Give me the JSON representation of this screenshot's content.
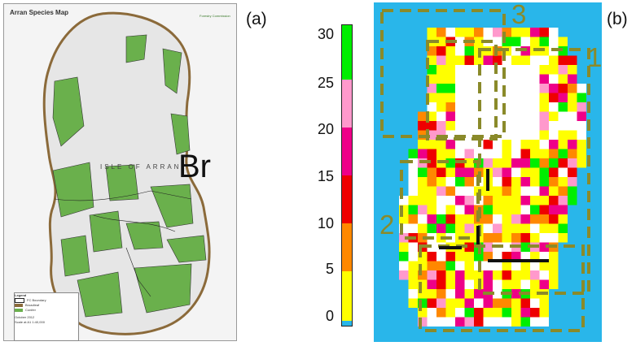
{
  "labels": {
    "panel_a": "(a)",
    "panel_b": "(b)"
  },
  "map": {
    "title": "Arran Species Map",
    "island_name": "ISLE OF ARRAN",
    "overlay_label": "Br",
    "logo": "Forestry Commission",
    "legend": {
      "heading": "Legend",
      "items": [
        "FC Boundary",
        "Broadleaf",
        "Conifer"
      ],
      "footer": [
        "October 2012",
        "Scale at A1  1:40,000"
      ]
    }
  },
  "colorbar": {
    "ticks": [
      "30",
      "25",
      "20",
      "15",
      "10",
      "5",
      "0"
    ],
    "colors": [
      "#00ee00",
      "#ff99cc",
      "#ee0088",
      "#ee0000",
      "#ff8800",
      "#ffff00",
      "#29b6ea"
    ],
    "range": [
      0,
      31
    ]
  },
  "zones": {
    "z1": "1",
    "z2": "2",
    "z3": "3"
  },
  "palette": {
    "sea": "#29b6ea",
    "woodland": "#6ab04c",
    "broadleaf": "#8b6a3a",
    "zone_outline": "#8a8a2a"
  }
}
